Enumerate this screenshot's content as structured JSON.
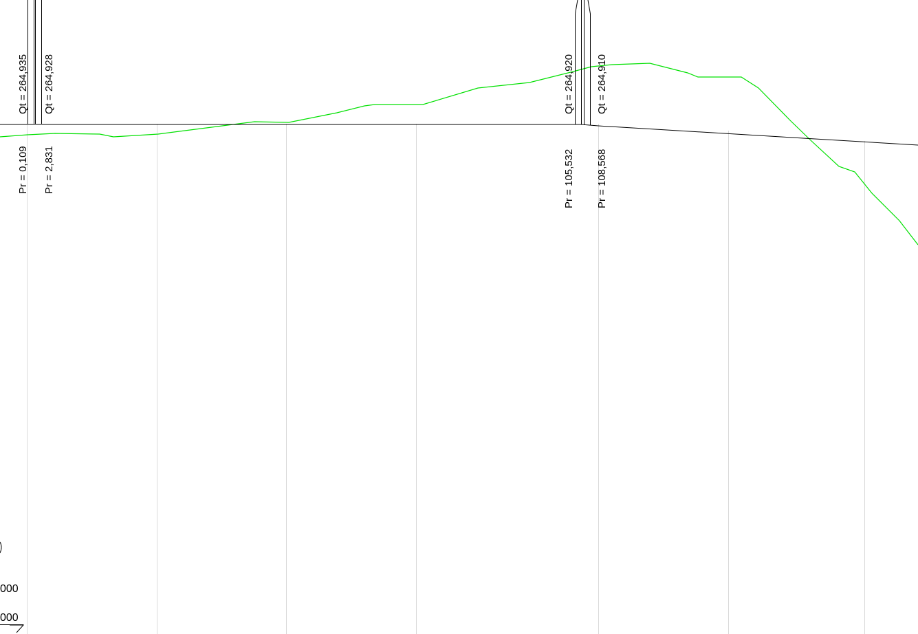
{
  "colors": {
    "background": "#ffffff",
    "grid": "#d9d9d9",
    "terrain": "#00e000",
    "design_line": "#000000",
    "text": "#000000"
  },
  "profile": {
    "points": [
      {
        "pr": "Pr = 0,109",
        "qt": "Qt = 264,935"
      },
      {
        "pr": "Pr = 2,831",
        "qt": "Qt = 264,928"
      },
      {
        "pr": "Pr = 105,532",
        "qt": "Qt = 264,920"
      },
      {
        "pr": "Pr = 108,568",
        "qt": "Qt = 264,910"
      }
    ],
    "left_edge_labels": [
      "000",
      "000"
    ]
  }
}
